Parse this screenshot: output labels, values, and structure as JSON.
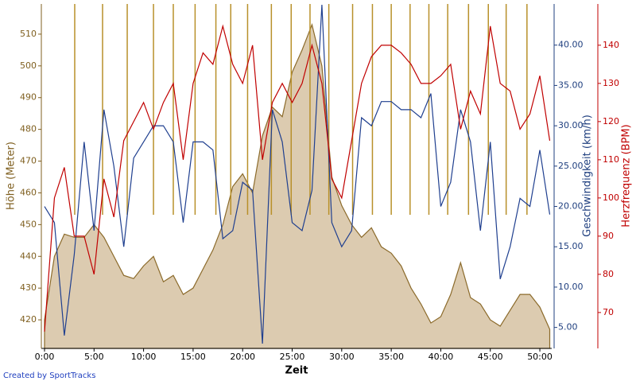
{
  "chart_data": {
    "type": "line",
    "xlabel": "Zeit",
    "ylabel": "Höhe (Meter)",
    "y2label": "Geschwindigkeit (km/h)",
    "y3label": "Herzfrequenz (BPM)",
    "footer": "Created by SportTracks",
    "x": [
      0,
      1,
      2,
      3,
      4,
      5,
      6,
      7,
      8,
      9,
      10,
      11,
      12,
      13,
      14,
      15,
      16,
      17,
      18,
      19,
      20,
      21,
      22,
      23,
      24,
      25,
      26,
      27,
      28,
      29,
      30,
      31,
      32,
      33,
      34,
      35,
      36,
      37,
      38,
      39,
      40,
      41,
      42,
      43,
      44,
      45,
      46,
      47,
      48,
      49,
      50,
      51
    ],
    "xlim": [
      -0.32,
      51.2
    ],
    "xticks": [
      {
        "value": 0,
        "label": "0:00"
      },
      {
        "value": 5,
        "label": "5:00"
      },
      {
        "value": 10,
        "label": "10:00"
      },
      {
        "value": 15,
        "label": "15:00"
      },
      {
        "value": 20,
        "label": "20:00"
      },
      {
        "value": 25,
        "label": "25:00"
      },
      {
        "value": 30,
        "label": "30:00"
      },
      {
        "value": 35,
        "label": "35:00"
      },
      {
        "value": 40,
        "label": "40:00"
      },
      {
        "value": 45,
        "label": "45:00"
      },
      {
        "value": 50,
        "label": "50:00"
      }
    ],
    "ylim": [
      411,
      519.5
    ],
    "yticks": [
      420,
      430,
      440,
      450,
      460,
      470,
      480,
      490,
      500,
      510
    ],
    "y2lim": [
      2.4,
      45.1
    ],
    "y2ticks": [
      {
        "value": 5,
        "label": "5.00"
      },
      {
        "value": 10,
        "label": "10.00"
      },
      {
        "value": 15,
        "label": "15.00"
      },
      {
        "value": 20,
        "label": "20.00"
      },
      {
        "value": 25,
        "label": "25.00"
      },
      {
        "value": 30,
        "label": "30.00"
      },
      {
        "value": 35,
        "label": "35.00"
      },
      {
        "value": 40,
        "label": "40.00"
      }
    ],
    "y3lim": [
      60.6,
      150.8
    ],
    "y3ticks": [
      70,
      80,
      90,
      100,
      110,
      120,
      130,
      140
    ],
    "lap_markers": [
      3.05,
      5.86,
      8.35,
      11.0,
      13.0,
      15.2,
      17.3,
      18.8,
      20.5,
      22.9,
      24.9,
      26.8,
      28.7,
      31.1,
      33.1,
      35.0,
      36.9,
      38.8,
      40.7,
      42.8,
      44.8,
      46.6,
      48.7
    ],
    "marker_color": "#b8902a",
    "series": [
      {
        "name": "Höhe",
        "style": "area",
        "axis": "y",
        "color": "#8b6a2a",
        "fill": "#dccbb0",
        "values": [
          420,
          440,
          447,
          446,
          446,
          450,
          446,
          440,
          434,
          433,
          437,
          440,
          432,
          434,
          428,
          430,
          436,
          442,
          450,
          462,
          466,
          460,
          478,
          487,
          484,
          498,
          505,
          513,
          500,
          465,
          456,
          450,
          446,
          449,
          443,
          441,
          437,
          430,
          425,
          419,
          421,
          428,
          438,
          427,
          425,
          420,
          418,
          423,
          428,
          428,
          424,
          417
        ]
      },
      {
        "name": "Geschwindigkeit",
        "style": "line",
        "axis": "y2",
        "color": "#1f3f8f",
        "values": [
          20,
          18,
          4,
          14,
          28,
          17,
          32,
          25,
          15,
          26,
          28,
          30,
          30,
          28,
          18,
          28,
          28,
          27,
          16,
          17,
          23,
          22,
          3,
          32,
          28,
          18,
          17,
          22,
          45,
          18,
          15,
          17,
          31,
          30,
          33,
          33,
          32,
          32,
          31,
          34,
          20,
          23,
          32,
          28,
          17,
          28,
          11,
          15,
          21,
          20,
          27,
          19
        ]
      },
      {
        "name": "Herzfrequenz",
        "style": "line",
        "axis": "y3",
        "color": "#c00000",
        "values": [
          65,
          100,
          108,
          90,
          90,
          80,
          105,
          95,
          115,
          120,
          125,
          118,
          125,
          130,
          110,
          130,
          138,
          135,
          145,
          135,
          130,
          140,
          110,
          125,
          130,
          125,
          130,
          140,
          130,
          105,
          100,
          115,
          130,
          137,
          140,
          140,
          138,
          135,
          130,
          130,
          132,
          135,
          118,
          128,
          122,
          145,
          130,
          128,
          118,
          122,
          132,
          115
        ]
      }
    ]
  }
}
